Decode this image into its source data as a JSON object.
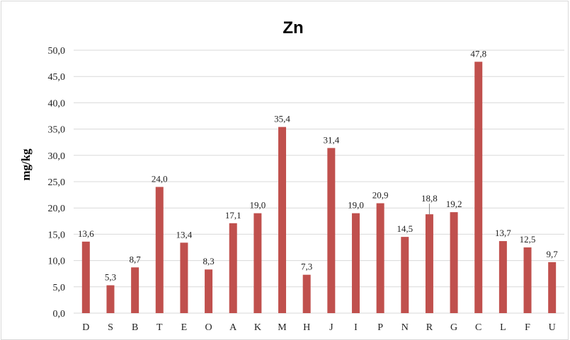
{
  "chart_data": {
    "type": "bar",
    "title": "Zn",
    "ylabel": "mg/kg",
    "xlabel": "",
    "ylim": [
      0,
      50
    ],
    "ytick_step": 5,
    "ytick_labels": [
      "0,0",
      "5,0",
      "10,0",
      "15,0",
      "20,0",
      "25,0",
      "30,0",
      "35,0",
      "40,0",
      "45,0",
      "50,0"
    ],
    "categories": [
      "D",
      "S",
      "B",
      "T",
      "E",
      "O",
      "A",
      "K",
      "M",
      "H",
      "J",
      "I",
      "P",
      "N",
      "R",
      "G",
      "C",
      "L",
      "F",
      "U"
    ],
    "values": [
      13.6,
      5.3,
      8.7,
      24.0,
      13.4,
      8.3,
      17.1,
      19.0,
      35.4,
      7.3,
      31.4,
      19.0,
      20.9,
      14.5,
      18.8,
      19.2,
      47.8,
      13.7,
      12.5,
      9.7
    ],
    "value_labels": [
      "13,6",
      "5,3",
      "8,7",
      "24,0",
      "13,4",
      "8,3",
      "17,1",
      "19,0",
      "35,4",
      "7,3",
      "31,4",
      "19,0",
      "20,9",
      "14,5",
      "18,8",
      "19,2",
      "47,8",
      "13,7",
      "12,5",
      "9,7"
    ],
    "bar_color": "#c0504d",
    "grid": true,
    "legend": "none"
  }
}
